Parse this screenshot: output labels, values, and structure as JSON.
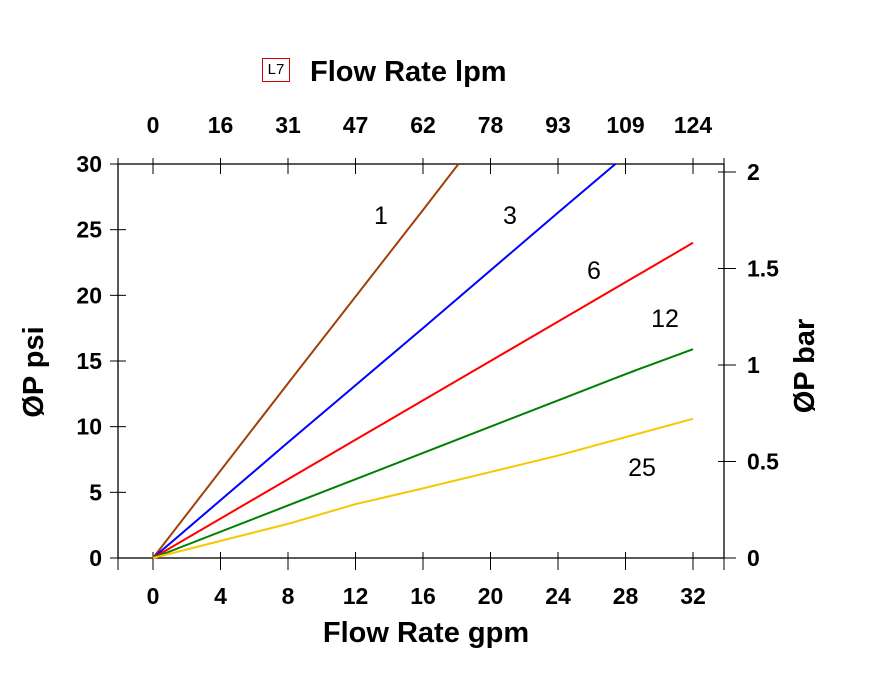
{
  "chart_data": {
    "type": "line",
    "badge": "L7",
    "xlabel": "Flow Rate gpm",
    "x2label": "Flow Rate lpm",
    "ylabel": "ØP psi",
    "y2label": "ØP bar",
    "xlim": [
      0,
      32
    ],
    "ylim": [
      0,
      30
    ],
    "y2lim": [
      0,
      2
    ],
    "x_ticks": [
      "0",
      "4",
      "8",
      "12",
      "16",
      "20",
      "24",
      "28",
      "32"
    ],
    "x2_ticks": [
      "0",
      "16",
      "31",
      "47",
      "62",
      "78",
      "93",
      "109",
      "124"
    ],
    "y_ticks": [
      "0",
      "5",
      "10",
      "15",
      "20",
      "25",
      "30"
    ],
    "y2_ticks": [
      "0",
      "0.5",
      "1",
      "1.5",
      "2"
    ],
    "grid": false,
    "series": [
      {
        "name": "1",
        "color": "#a0400a",
        "points": [
          [
            0,
            0
          ],
          [
            8,
            13.3
          ],
          [
            16,
            26.5
          ],
          [
            18.1,
            30
          ]
        ]
      },
      {
        "name": "3",
        "color": "#0000ff",
        "points": [
          [
            0,
            0
          ],
          [
            8,
            8.8
          ],
          [
            16,
            17.5
          ],
          [
            24,
            26.3
          ],
          [
            27.4,
            30
          ]
        ]
      },
      {
        "name": "6",
        "color": "#ff0000",
        "points": [
          [
            0,
            0
          ],
          [
            8,
            6
          ],
          [
            12,
            9
          ],
          [
            16,
            12
          ],
          [
            24,
            18
          ],
          [
            32,
            24
          ]
        ]
      },
      {
        "name": "12",
        "color": "#008000",
        "points": [
          [
            0,
            0
          ],
          [
            8,
            4
          ],
          [
            16,
            8
          ],
          [
            24,
            12
          ],
          [
            28,
            14
          ],
          [
            32,
            15.9
          ]
        ]
      },
      {
        "name": "25",
        "color": "#f5c800",
        "points": [
          [
            0,
            0
          ],
          [
            8,
            2.6
          ],
          [
            12,
            4.1
          ],
          [
            16,
            5.3
          ],
          [
            24,
            7.8
          ],
          [
            32,
            10.6
          ]
        ]
      }
    ]
  }
}
